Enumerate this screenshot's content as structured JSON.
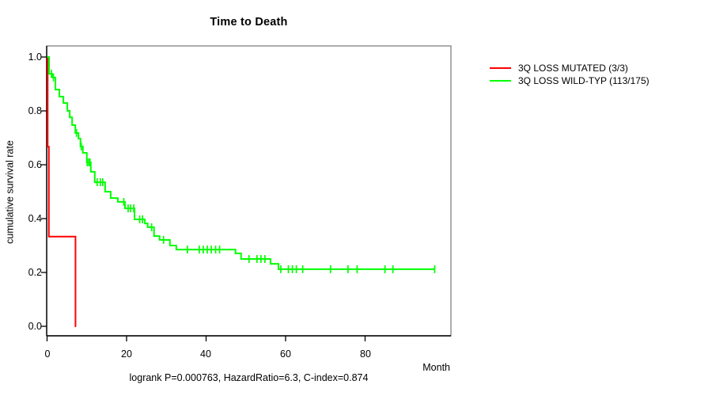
{
  "title": "Time to Death",
  "caption": "logrank P=0.000763, HazardRatio=6.3, C-index=0.874",
  "x_axis_label": "Month",
  "y_axis_label": "cumulative survival rate",
  "legend": {
    "items": [
      {
        "label": "3Q LOSS MUTATED (3/3)",
        "color": "#ff0000"
      },
      {
        "label": "3Q LOSS WILD-TYP (113/175)",
        "color": "#00ff00"
      }
    ]
  },
  "colors": {
    "mutated": "#ff0000",
    "wildtype": "#00ff00",
    "frame": "#8a8a8a",
    "axis": "#000000"
  },
  "chart_data": {
    "type": "line",
    "subtype": "kaplan-meier-step",
    "title": "Time to Death",
    "xlabel": "Month",
    "ylabel": "cumulative survival rate",
    "xlim": [
      0,
      101
    ],
    "ylim": [
      0.0,
      1.0
    ],
    "xticks": [
      0,
      20,
      40,
      60,
      80
    ],
    "xtick_labels": [
      "0",
      "20",
      "40",
      "60",
      "80"
    ],
    "ytick_values": [
      0.0,
      0.2,
      0.4,
      0.6,
      0.8,
      1.0
    ],
    "ytick_labels": [
      "0.0",
      "0.2",
      "0.4",
      "0.6",
      "0.8",
      "1.0"
    ],
    "grid": false,
    "legend_position": "outside-top-right",
    "annotation": "logrank P=0.000763, HazardRatio=6.3, C-index=0.874",
    "series": [
      {
        "id": "mutated",
        "name": "3Q LOSS MUTATED (3/3)",
        "color": "#ff0000",
        "start": [
          0,
          1.0
        ],
        "steps": [
          [
            0.15,
            0.667
          ],
          [
            0.45,
            0.333
          ],
          [
            7.15,
            0.0
          ]
        ],
        "end_month": 7.3,
        "censor_months": []
      },
      {
        "id": "wildtype",
        "name": "3Q LOSS WILD-TYP (113/175)",
        "color": "#00ff00",
        "start": [
          0,
          1.0
        ],
        "steps": [
          [
            0.5,
            0.938
          ],
          [
            1.3,
            0.924
          ],
          [
            2.1,
            0.879
          ],
          [
            3.1,
            0.853
          ],
          [
            4.1,
            0.829
          ],
          [
            5.1,
            0.8
          ],
          [
            5.7,
            0.776
          ],
          [
            6.3,
            0.747
          ],
          [
            7.1,
            0.718
          ],
          [
            7.9,
            0.697
          ],
          [
            8.4,
            0.668
          ],
          [
            9.0,
            0.644
          ],
          [
            10.0,
            0.609
          ],
          [
            11.0,
            0.574
          ],
          [
            12.0,
            0.535
          ],
          [
            14.6,
            0.5
          ],
          [
            16.0,
            0.476
          ],
          [
            17.8,
            0.462
          ],
          [
            19.6,
            0.438
          ],
          [
            22.0,
            0.397
          ],
          [
            24.6,
            0.382
          ],
          [
            25.3,
            0.368
          ],
          [
            26.9,
            0.335
          ],
          [
            28.3,
            0.321
          ],
          [
            30.9,
            0.3
          ],
          [
            32.5,
            0.285
          ],
          [
            47.4,
            0.271
          ],
          [
            48.8,
            0.25
          ],
          [
            56.2,
            0.232
          ],
          [
            58.2,
            0.212
          ]
        ],
        "end_month": 97.5,
        "censor_months": [
          1.1,
          1.6,
          7.4,
          8.6,
          10.1,
          10.5,
          10.8,
          12.6,
          13.4,
          14.0,
          19.3,
          20.4,
          21.0,
          21.8,
          23.3,
          24.0,
          26.3,
          29.3,
          35.3,
          38.3,
          39.3,
          40.3,
          41.3,
          42.4,
          43.4,
          50.8,
          52.8,
          53.8,
          54.8,
          58.8,
          60.7,
          61.7,
          62.7,
          64.3,
          71.3,
          75.7,
          78.0,
          85.0,
          87.0,
          97.5
        ]
      }
    ]
  }
}
